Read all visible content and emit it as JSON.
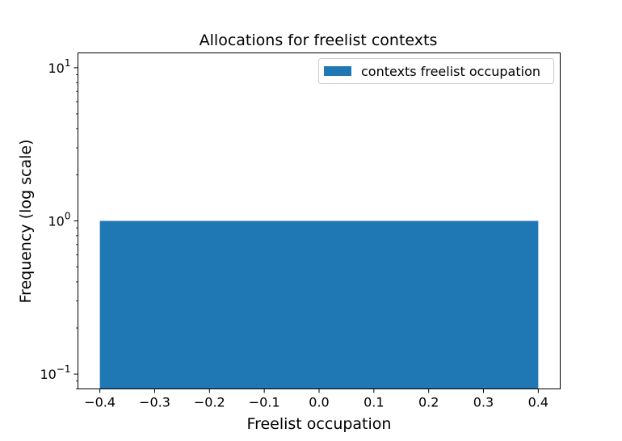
{
  "chart_data": {
    "type": "bar",
    "title": "Allocations for freelist contexts",
    "xlabel": "Freelist occupation",
    "ylabel": "Frequency (log scale)",
    "yscale": "log",
    "xlim": [
      -0.44,
      0.44
    ],
    "ylim": [
      0.08,
      12.5
    ],
    "x_ticks": [
      "−0.4",
      "−0.3",
      "−0.2",
      "−0.1",
      "0.0",
      "0.1",
      "0.2",
      "0.3",
      "0.4"
    ],
    "x_tick_values": [
      -0.4,
      -0.3,
      -0.2,
      -0.1,
      0.0,
      0.1,
      0.2,
      0.3,
      0.4
    ],
    "y_ticks": [
      {
        "value": 0.1,
        "base": "10",
        "exp": "−1"
      },
      {
        "value": 1,
        "base": "10",
        "exp": "0"
      },
      {
        "value": 10,
        "base": "10",
        "exp": "1"
      }
    ],
    "grid": false,
    "legend_position": "top-right",
    "series": [
      {
        "name": "contexts freelist occupation",
        "color": "#1f77b4",
        "bars": [
          {
            "x_start": -0.4,
            "x_end": 0.4,
            "value": 1
          }
        ]
      }
    ]
  }
}
